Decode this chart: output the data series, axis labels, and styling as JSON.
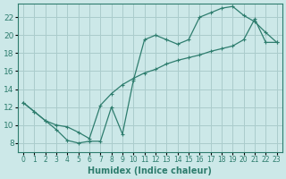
{
  "xlabel": "Humidex (Indice chaleur)",
  "bg_color": "#cce8e8",
  "line_color": "#2e7d6e",
  "grid_color": "#aacccc",
  "xlim": [
    -0.5,
    23.5
  ],
  "ylim": [
    7.0,
    23.5
  ],
  "yticks": [
    8,
    10,
    12,
    14,
    16,
    18,
    20,
    22
  ],
  "xticks": [
    0,
    1,
    2,
    3,
    4,
    5,
    6,
    7,
    8,
    9,
    10,
    11,
    12,
    13,
    14,
    15,
    16,
    17,
    18,
    19,
    20,
    21,
    22,
    23
  ],
  "line1_x": [
    0,
    1,
    2,
    3,
    4,
    5,
    6,
    7,
    8,
    9,
    10,
    11,
    12,
    13,
    14,
    15,
    16,
    17,
    18,
    19,
    20,
    21,
    22,
    23
  ],
  "line1_y": [
    12.5,
    11.5,
    10.5,
    9.5,
    8.3,
    8.0,
    8.2,
    8.2,
    12.0,
    9.0,
    15.0,
    19.5,
    20.0,
    19.5,
    19.0,
    19.5,
    22.0,
    22.5,
    23.0,
    23.2,
    22.2,
    21.5,
    20.3,
    19.2
  ],
  "line2_x": [
    0,
    1,
    2,
    3,
    4,
    5,
    6,
    7,
    8,
    9,
    10,
    11,
    12,
    13,
    14,
    15,
    16,
    17,
    18,
    19,
    20,
    21,
    22,
    23
  ],
  "line2_y": [
    12.5,
    11.5,
    10.5,
    10.0,
    9.8,
    9.2,
    8.5,
    12.2,
    13.5,
    14.5,
    15.2,
    15.8,
    16.2,
    16.8,
    17.2,
    17.5,
    17.8,
    18.2,
    18.5,
    18.8,
    19.5,
    21.8,
    19.2,
    19.2
  ]
}
